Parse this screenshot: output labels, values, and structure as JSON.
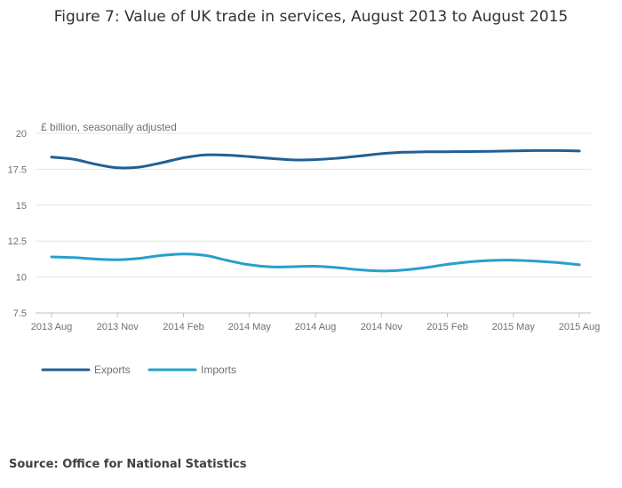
{
  "chart_data": {
    "type": "line",
    "title": "Figure 7: Value of UK trade in services, August 2013 to August 2015",
    "units_label": "£ billion, seasonally adjusted",
    "ylim": [
      7.5,
      20
    ],
    "yticks": [
      7.5,
      10,
      12.5,
      15,
      17.5,
      20
    ],
    "ytick_labels": [
      "7.5",
      "10",
      "12.5",
      "15",
      "17.5",
      "20"
    ],
    "x": [
      "2013 Aug",
      "2013 Sep",
      "2013 Oct",
      "2013 Nov",
      "2013 Dec",
      "2014 Jan",
      "2014 Feb",
      "2014 Mar",
      "2014 Apr",
      "2014 May",
      "2014 Jun",
      "2014 Jul",
      "2014 Aug",
      "2014 Sep",
      "2014 Oct",
      "2014 Nov",
      "2014 Dec",
      "2015 Jan",
      "2015 Feb",
      "2015 Mar",
      "2015 Apr",
      "2015 May",
      "2015 Jun",
      "2015 Jul",
      "2015 Aug"
    ],
    "xtick_labels": [
      "2013 Aug",
      "2013 Nov",
      "2014 Feb",
      "2014 May",
      "2014 Aug",
      "2014 Nov",
      "2015 Feb",
      "2015 May",
      "2015 Aug"
    ],
    "xtick_every": 3,
    "grid": true,
    "legend_position": "bottom-left",
    "series": [
      {
        "name": "Exports",
        "color": "#206095",
        "values": [
          18.35,
          18.2,
          17.85,
          17.6,
          17.65,
          17.95,
          18.3,
          18.5,
          18.48,
          18.38,
          18.25,
          18.15,
          18.17,
          18.27,
          18.42,
          18.58,
          18.68,
          18.71,
          18.72,
          18.73,
          18.75,
          18.78,
          18.8,
          18.8,
          18.77
        ]
      },
      {
        "name": "Imports",
        "color": "#27a0cc",
        "values": [
          11.4,
          11.35,
          11.25,
          11.2,
          11.3,
          11.5,
          11.6,
          11.5,
          11.15,
          10.85,
          10.7,
          10.72,
          10.75,
          10.65,
          10.5,
          10.42,
          10.48,
          10.65,
          10.88,
          11.05,
          11.15,
          11.17,
          11.1,
          11.0,
          10.85
        ]
      }
    ]
  },
  "source": "Source: Office for National Statistics"
}
